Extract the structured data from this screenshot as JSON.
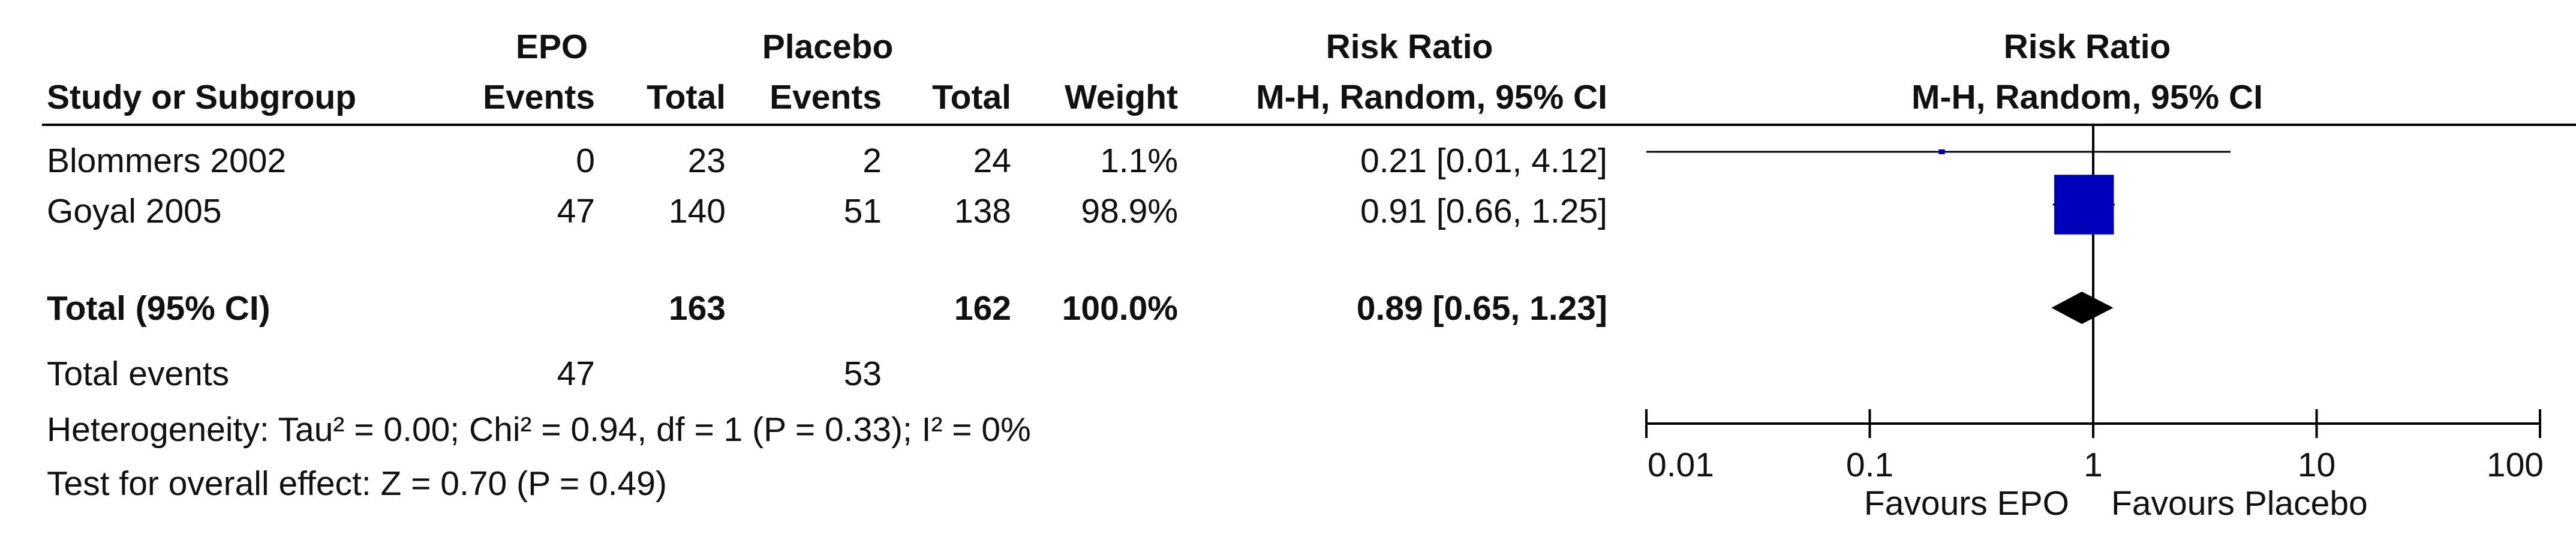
{
  "headers": {
    "group_experimental": "EPO",
    "group_control": "Placebo",
    "effect_group": "Risk Ratio",
    "study": "Study or Subgroup",
    "events_e": "Events",
    "total_e": "Total",
    "events_c": "Events",
    "total_c": "Total",
    "weight": "Weight",
    "method": "M-H, Random, 95% CI",
    "plot_title": "Risk Ratio",
    "plot_method": "M-H, Random, 95% CI"
  },
  "studies": [
    {
      "name": "Blommers 2002",
      "events_e": "0",
      "total_e": "23",
      "events_c": "2",
      "total_c": "24",
      "weight": "1.1%",
      "ci_text": "0.21 [0.01, 4.12]"
    },
    {
      "name": "Goyal 2005",
      "events_e": "47",
      "total_e": "140",
      "events_c": "51",
      "total_c": "138",
      "weight": "98.9%",
      "ci_text": "0.91 [0.66, 1.25]"
    }
  ],
  "total": {
    "label": "Total (95% CI)",
    "total_e": "163",
    "total_c": "162",
    "weight": "100.0%",
    "ci_text": "0.89 [0.65, 1.23]"
  },
  "total_events": {
    "label": "Total events",
    "events_e": "47",
    "events_c": "53"
  },
  "heterogeneity": "Heterogeneity: Tau² = 0.00; Chi² = 0.94, df = 1 (P = 0.33); I² = 0%",
  "overall_effect": "Test for overall effect: Z = 0.70 (P = 0.49)",
  "favours_left": "Favours EPO",
  "favours_right": "Favours Placebo",
  "colors": {
    "study_marker": "#0000bb",
    "summary_marker": "#000000"
  },
  "chart_data": {
    "type": "forest",
    "x_scale": "log",
    "xlim": [
      0.01,
      100
    ],
    "x_ticks": [
      0.01,
      0.1,
      1,
      10,
      100
    ],
    "x_tick_labels": [
      "0.01",
      "0.1",
      "1",
      "10",
      "100"
    ],
    "reference_line": 1,
    "studies": [
      {
        "name": "Blommers 2002",
        "estimate": 0.21,
        "lower": 0.01,
        "upper": 4.12,
        "weight": 1.1
      },
      {
        "name": "Goyal 2005",
        "estimate": 0.91,
        "lower": 0.66,
        "upper": 1.25,
        "weight": 98.9
      }
    ],
    "summary": {
      "name": "Total (95% CI)",
      "estimate": 0.89,
      "lower": 0.65,
      "upper": 1.23
    }
  }
}
